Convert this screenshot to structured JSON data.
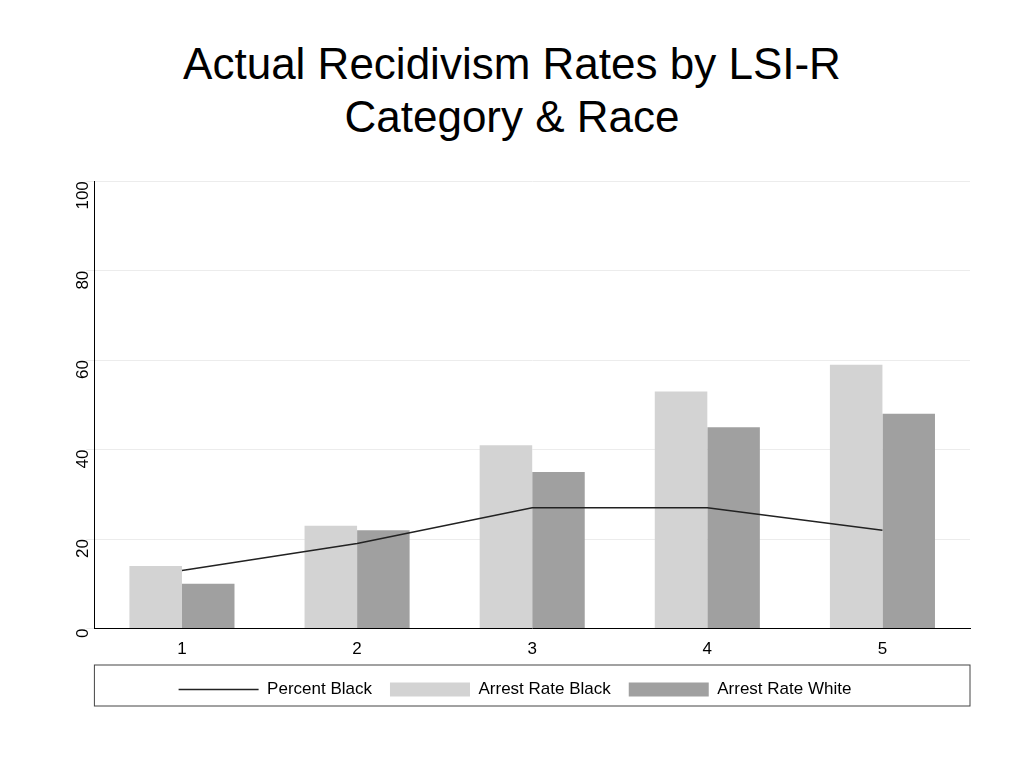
{
  "chart_data": {
    "type": "bar",
    "title": "Actual Recidivism Rates by LSI-R Category & Race",
    "categories": [
      "1",
      "2",
      "3",
      "4",
      "5"
    ],
    "series": [
      {
        "name": "Arrest Rate Black",
        "color": "#d3d3d3",
        "values": [
          14,
          23,
          41,
          53,
          59
        ]
      },
      {
        "name": "Arrest Rate White",
        "color": "#a0a0a0",
        "values": [
          10,
          22,
          35,
          45,
          48
        ]
      },
      {
        "name": "Percent Black",
        "type": "line",
        "color": "#222222",
        "values": [
          13,
          19,
          27,
          27,
          22
        ]
      }
    ],
    "ylim": [
      0,
      100
    ],
    "yticks": [
      0,
      20,
      40,
      60,
      80,
      100
    ],
    "grid": true,
    "legend": "bottom"
  }
}
